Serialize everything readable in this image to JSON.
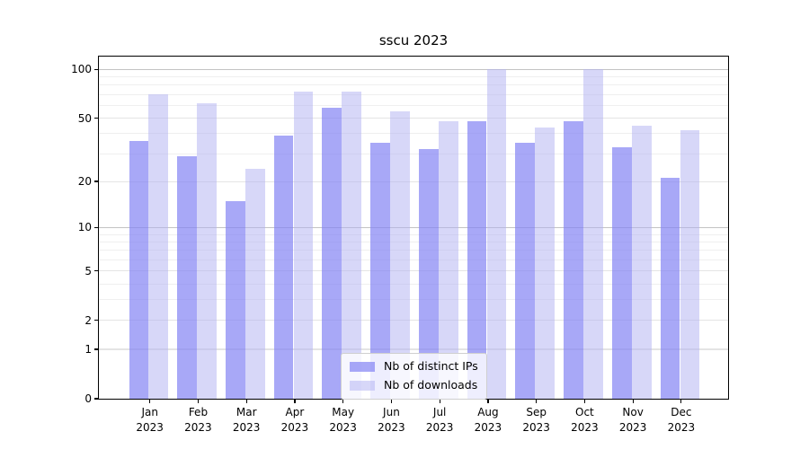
{
  "title": "sscu 2023",
  "chart_data": {
    "type": "bar",
    "title": "sscu 2023",
    "categories": [
      "Jan",
      "Feb",
      "Mar",
      "Apr",
      "May",
      "Jun",
      "Jul",
      "Aug",
      "Sep",
      "Oct",
      "Nov",
      "Dec"
    ],
    "year": "2023",
    "series": [
      {
        "name": "Nb of distinct IPs",
        "color": "rgba(131,131,243,0.70)",
        "color_hex_effective": "#a8a8f7",
        "values": [
          36,
          29,
          15,
          39,
          58,
          35,
          32,
          48,
          35,
          48,
          33,
          21
        ]
      },
      {
        "name": "Nb of downloads",
        "color": "rgba(178,178,242,0.52)",
        "color_hex_effective": "#d7d7f8",
        "values": [
          70,
          62,
          24,
          73,
          73,
          55,
          48,
          100,
          44,
          100,
          45,
          42
        ]
      }
    ],
    "xlabel": "",
    "ylabel": "",
    "yscale": "log1p",
    "ylim": [
      0,
      121
    ],
    "yticks": [
      0,
      1,
      2,
      5,
      10,
      20,
      50,
      100
    ],
    "grid": {
      "major": [
        10,
        100
      ],
      "medium": [
        1,
        2,
        5,
        20,
        50
      ],
      "minor": [
        3,
        4,
        6,
        7,
        8,
        9,
        30,
        40,
        60,
        70,
        80,
        90
      ]
    },
    "legend_position": "lower center",
    "colors": {
      "background": "#ffffff",
      "spine": "#000000",
      "grid_major": "#c3c3c3",
      "grid_light": "#e4e4e4",
      "text": "#000000"
    }
  }
}
